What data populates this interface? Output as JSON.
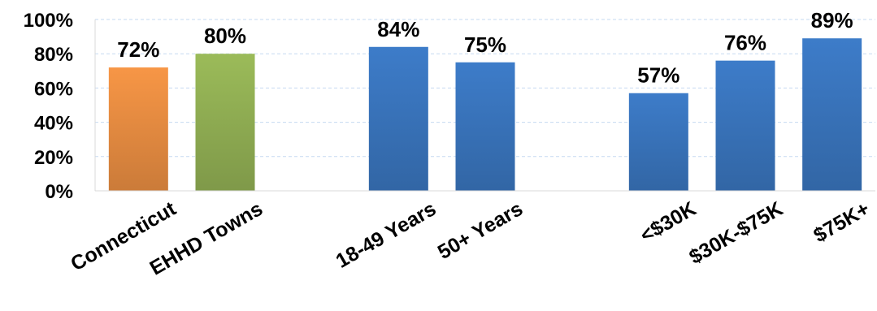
{
  "chart_data": {
    "type": "bar",
    "categories": [
      "Connecticut",
      "EHHD Towns",
      "",
      "18-49 Years",
      "50+ Years",
      "",
      "<$30K",
      "$30K-$75K",
      "$75K+"
    ],
    "values": [
      72,
      80,
      null,
      84,
      75,
      null,
      57,
      76,
      89
    ],
    "data_labels": [
      "72%",
      "80%",
      "",
      "84%",
      "75%",
      "",
      "57%",
      "76%",
      "89%"
    ],
    "bar_colors": [
      "#f79646",
      "#9bbb59",
      "",
      "#3d7cc9",
      "#3d7cc9",
      "",
      "#3d7cc9",
      "#3d7cc9",
      "#3d7cc9"
    ],
    "ylim": [
      0,
      100
    ],
    "yticks": [
      0,
      20,
      40,
      60,
      80,
      100
    ],
    "ytick_labels": [
      "0%",
      "20%",
      "40%",
      "60%",
      "80%",
      "100%"
    ],
    "grid": true,
    "gridline_color": "#c6d9f1",
    "legend": "none",
    "title": "",
    "xlabel": "",
    "ylabel": ""
  }
}
